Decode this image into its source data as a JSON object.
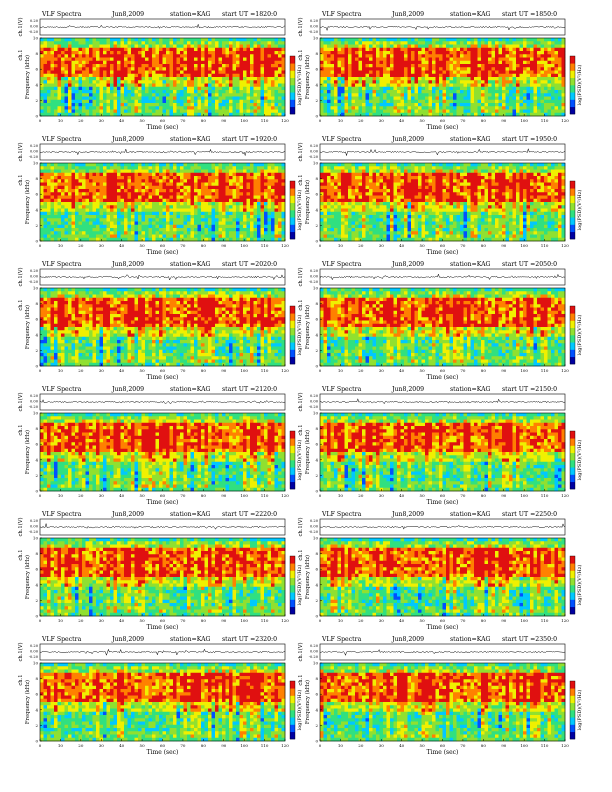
{
  "page": {
    "colors": {
      "background": "#ffffff",
      "colormap": [
        "#0000a0",
        "#0050ff",
        "#00c8ff",
        "#30e080",
        "#90e030",
        "#f0f000",
        "#ff8000",
        "#e01010"
      ]
    }
  },
  "chart_data": [
    {
      "type": "heatmap",
      "title_left": "VLF Spectra",
      "title_date": "Jun8,2009",
      "title_station": "station=KAG",
      "title_start": "start UT =1820:0",
      "xlabel": "Time (sec)",
      "ylabel_top": "ch.1(V)",
      "ylabel_bottom": "ch.1",
      "ylabel": "Frequency (kHz)",
      "colorbar_label": "log(PSD)(V²/Hz)",
      "xlim": [
        0,
        120
      ],
      "ylim": [
        0,
        10
      ],
      "x_ticks": [
        0,
        10,
        20,
        30,
        40,
        50,
        60,
        70,
        80,
        90,
        100,
        110,
        120
      ],
      "y_ticks": [
        0,
        2,
        4,
        6,
        8,
        10
      ],
      "top_ticks": [
        "0.20",
        "0.00",
        "-0.20"
      ]
    },
    {
      "type": "heatmap",
      "title_left": "VLF Spectra",
      "title_date": "Jun8,2009",
      "title_station": "station=KAG",
      "title_start": "start UT =1850:0",
      "xlabel": "Time (sec)",
      "ylabel_top": "ch.1(V)",
      "ylabel_bottom": "ch.1",
      "ylabel": "Frequency (kHz)",
      "colorbar_label": "log(PSD)(V²/Hz)",
      "xlim": [
        0,
        120
      ],
      "ylim": [
        0,
        10
      ],
      "x_ticks": [
        0,
        10,
        20,
        30,
        40,
        50,
        60,
        70,
        80,
        90,
        100,
        110,
        120
      ],
      "y_ticks": [
        0,
        2,
        4,
        6,
        8,
        10
      ],
      "top_ticks": [
        "0.20",
        "0.00",
        "-0.20"
      ]
    },
    {
      "type": "heatmap",
      "title_left": "VLF Spectra",
      "title_date": "Jun8,2009",
      "title_station": "station=KAG",
      "title_start": "start UT =1920:0",
      "xlabel": "Time (sec)",
      "ylabel_top": "ch.1(V)",
      "ylabel_bottom": "ch.1",
      "ylabel": "Frequency (kHz)",
      "colorbar_label": "log(PSD)(V²/Hz)",
      "xlim": [
        0,
        120
      ],
      "ylim": [
        0,
        10
      ],
      "x_ticks": [
        0,
        10,
        20,
        30,
        40,
        50,
        60,
        70,
        80,
        90,
        100,
        110,
        120
      ],
      "y_ticks": [
        0,
        2,
        4,
        6,
        8,
        10
      ],
      "top_ticks": [
        "0.20",
        "0.00",
        "-0.20"
      ]
    },
    {
      "type": "heatmap",
      "title_left": "VLF Spectra",
      "title_date": "Jun8,2009",
      "title_station": "station=KAG",
      "title_start": "start UT =1950:0",
      "xlabel": "Time (sec)",
      "ylabel_top": "ch.1(V)",
      "ylabel_bottom": "ch.1",
      "ylabel": "Frequency (kHz)",
      "colorbar_label": "log(PSD)(V²/Hz)",
      "xlim": [
        0,
        120
      ],
      "ylim": [
        0,
        10
      ],
      "x_ticks": [
        0,
        10,
        20,
        30,
        40,
        50,
        60,
        70,
        80,
        90,
        100,
        110,
        120
      ],
      "y_ticks": [
        0,
        2,
        4,
        6,
        8,
        10
      ],
      "top_ticks": [
        "0.20",
        "0.00",
        "-0.20"
      ]
    },
    {
      "type": "heatmap",
      "title_left": "VLF Spectra",
      "title_date": "Jun8,2009",
      "title_station": "station=KAG",
      "title_start": "start UT =2020:0",
      "xlabel": "Time (sec)",
      "ylabel_top": "ch.1(V)",
      "ylabel_bottom": "ch.1",
      "ylabel": "Frequency (kHz)",
      "colorbar_label": "log(PSD)(V²/Hz)",
      "xlim": [
        0,
        120
      ],
      "ylim": [
        0,
        10
      ],
      "x_ticks": [
        0,
        10,
        20,
        30,
        40,
        50,
        60,
        70,
        80,
        90,
        100,
        110,
        120
      ],
      "y_ticks": [
        0,
        2,
        4,
        6,
        8,
        10
      ],
      "top_ticks": [
        "0.20",
        "0.00",
        "-0.20"
      ]
    },
    {
      "type": "heatmap",
      "title_left": "VLF Spectra",
      "title_date": "Jun8,2009",
      "title_station": "station=KAG",
      "title_start": "start UT =2050:0",
      "xlabel": "Time (sec)",
      "ylabel_top": "ch.1(V)",
      "ylabel_bottom": "ch.1",
      "ylabel": "Frequency (kHz)",
      "colorbar_label": "log(PSD)(V²/Hz)",
      "xlim": [
        0,
        120
      ],
      "ylim": [
        0,
        10
      ],
      "x_ticks": [
        0,
        10,
        20,
        30,
        40,
        50,
        60,
        70,
        80,
        90,
        100,
        110,
        120
      ],
      "y_ticks": [
        0,
        2,
        4,
        6,
        8,
        10
      ],
      "top_ticks": [
        "0.20",
        "0.00",
        "-0.20"
      ]
    },
    {
      "type": "heatmap",
      "title_left": "VLF Spectra",
      "title_date": "Jun8,2009",
      "title_station": "station=KAG",
      "title_start": "start UT =2120:0",
      "xlabel": "Time (sec)",
      "ylabel_top": "ch.1(V)",
      "ylabel_bottom": "ch.1",
      "ylabel": "Frequency (kHz)",
      "colorbar_label": "log(PSD)(V²/Hz)",
      "xlim": [
        0,
        120
      ],
      "ylim": [
        0,
        10
      ],
      "x_ticks": [
        0,
        10,
        20,
        30,
        40,
        50,
        60,
        70,
        80,
        90,
        100,
        110,
        120
      ],
      "y_ticks": [
        0,
        2,
        4,
        6,
        8,
        10
      ],
      "top_ticks": [
        "0.20",
        "0.00",
        "-0.20"
      ]
    },
    {
      "type": "heatmap",
      "title_left": "VLF Spectra",
      "title_date": "Jun8,2009",
      "title_station": "station=KAG",
      "title_start": "start UT =2150:0",
      "xlabel": "Time (sec)",
      "ylabel_top": "ch.1(V)",
      "ylabel_bottom": "ch.1",
      "ylabel": "Frequency (kHz)",
      "colorbar_label": "log(PSD)(V²/Hz)",
      "xlim": [
        0,
        120
      ],
      "ylim": [
        0,
        10
      ],
      "x_ticks": [
        0,
        10,
        20,
        30,
        40,
        50,
        60,
        70,
        80,
        90,
        100,
        110,
        120
      ],
      "y_ticks": [
        0,
        2,
        4,
        6,
        8,
        10
      ],
      "top_ticks": [
        "0.20",
        "0.00",
        "-0.20"
      ]
    },
    {
      "type": "heatmap",
      "title_left": "VLF Spectra",
      "title_date": "Jun8,2009",
      "title_station": "station=KAG",
      "title_start": "start UT =2220:0",
      "xlabel": "Time (sec)",
      "ylabel_top": "ch.1(V)",
      "ylabel_bottom": "ch.1",
      "ylabel": "Frequency (kHz)",
      "colorbar_label": "log(PSD)(V²/Hz)",
      "xlim": [
        0,
        120
      ],
      "ylim": [
        0,
        10
      ],
      "x_ticks": [
        0,
        10,
        20,
        30,
        40,
        50,
        60,
        70,
        80,
        90,
        100,
        110,
        120
      ],
      "y_ticks": [
        0,
        2,
        4,
        6,
        8,
        10
      ],
      "top_ticks": [
        "0.20",
        "0.00",
        "-0.20"
      ]
    },
    {
      "type": "heatmap",
      "title_left": "VLF Spectra",
      "title_date": "Jun8,2009",
      "title_station": "station=KAG",
      "title_start": "start UT =2250:0",
      "xlabel": "Time (sec)",
      "ylabel_top": "ch.1(V)",
      "ylabel_bottom": "ch.1",
      "ylabel": "Frequency (kHz)",
      "colorbar_label": "log(PSD)(V²/Hz)",
      "xlim": [
        0,
        120
      ],
      "ylim": [
        0,
        10
      ],
      "x_ticks": [
        0,
        10,
        20,
        30,
        40,
        50,
        60,
        70,
        80,
        90,
        100,
        110,
        120
      ],
      "y_ticks": [
        0,
        2,
        4,
        6,
        8,
        10
      ],
      "top_ticks": [
        "0.20",
        "0.00",
        "-0.20"
      ]
    },
    {
      "type": "heatmap",
      "title_left": "VLF Spectra",
      "title_date": "Jun8,2009",
      "title_station": "station=KAG",
      "title_start": "start UT =2320:0",
      "xlabel": "Time (sec)",
      "ylabel_top": "ch.1(V)",
      "ylabel_bottom": "ch.1",
      "ylabel": "Frequency (kHz)",
      "colorbar_label": "log(PSD)(V²/Hz)",
      "xlim": [
        0,
        120
      ],
      "ylim": [
        0,
        10
      ],
      "x_ticks": [
        0,
        10,
        20,
        30,
        40,
        50,
        60,
        70,
        80,
        90,
        100,
        110,
        120
      ],
      "y_ticks": [
        0,
        2,
        4,
        6,
        8,
        10
      ],
      "top_ticks": [
        "0.20",
        "0.00",
        "-0.20"
      ]
    },
    {
      "type": "heatmap",
      "title_left": "VLF Spectra",
      "title_date": "Jun8,2009",
      "title_station": "station=KAG",
      "title_start": "start UT =2350:0",
      "xlabel": "Time (sec)",
      "ylabel_top": "ch.1(V)",
      "ylabel_bottom": "ch.1",
      "ylabel": "Frequency (kHz)",
      "colorbar_label": "log(PSD)(V²/Hz)",
      "xlim": [
        0,
        120
      ],
      "ylim": [
        0,
        10
      ],
      "x_ticks": [
        0,
        10,
        20,
        30,
        40,
        50,
        60,
        70,
        80,
        90,
        100,
        110,
        120
      ],
      "y_ticks": [
        0,
        2,
        4,
        6,
        8,
        10
      ],
      "top_ticks": [
        "0.20",
        "0.00",
        "-0.20"
      ]
    }
  ]
}
